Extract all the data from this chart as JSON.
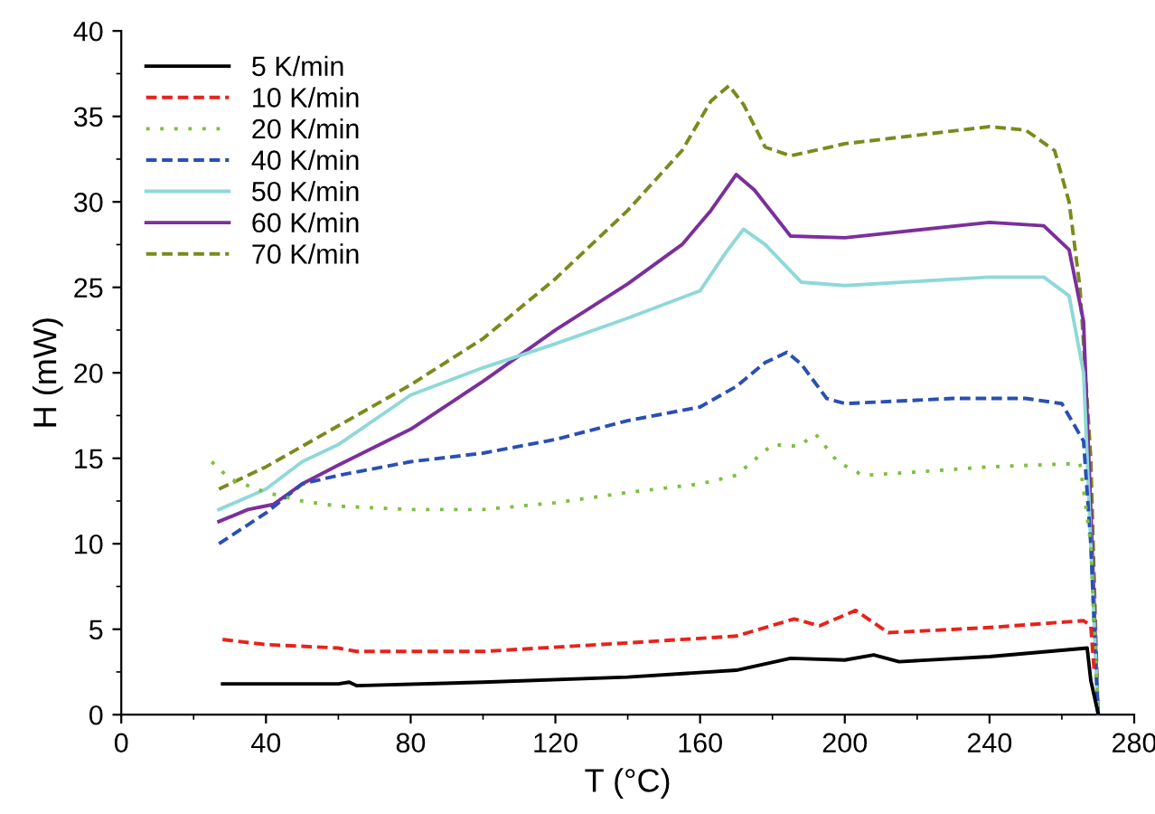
{
  "chart_data": {
    "type": "line",
    "xlabel": "T (°C)",
    "ylabel": "H (mW)",
    "xlim": [
      0,
      280
    ],
    "xticks": [
      0,
      40,
      80,
      120,
      160,
      200,
      240,
      280
    ],
    "ylim": [
      0,
      40
    ],
    "yticks": [
      0,
      5,
      10,
      15,
      20,
      25,
      30,
      35,
      40
    ],
    "grid": false,
    "legend": "top left",
    "marker": "none",
    "series": [
      {
        "name": "5 K/min",
        "color": "#000000",
        "line_style": "solid",
        "x": [
          28,
          60,
          63,
          65,
          100,
          140,
          170,
          185,
          200,
          208,
          215,
          240,
          267,
          268,
          270
        ],
        "values": [
          1.8,
          1.8,
          1.9,
          1.7,
          1.9,
          2.2,
          2.6,
          3.3,
          3.2,
          3.5,
          3.1,
          3.4,
          3.9,
          2.0,
          0.1
        ]
      },
      {
        "name": "10 K/min",
        "color": "#e8221c",
        "line_style": "dashed",
        "x": [
          28,
          40,
          60,
          65,
          100,
          140,
          170,
          186,
          193,
          203,
          212,
          240,
          266,
          268,
          269
        ],
        "values": [
          4.4,
          4.1,
          3.9,
          3.7,
          3.7,
          4.2,
          4.6,
          5.6,
          5.2,
          6.1,
          4.8,
          5.1,
          5.5,
          5.2,
          2.4
        ]
      },
      {
        "name": "20 K/min",
        "color": "#7ec03e",
        "line_style": "dotted",
        "x": [
          25,
          30,
          40,
          50,
          60,
          80,
          100,
          120,
          140,
          160,
          170,
          180,
          187,
          192,
          198,
          205,
          220,
          240,
          265,
          268,
          270
        ],
        "values": [
          14.8,
          13.8,
          13.0,
          12.5,
          12.2,
          12.0,
          12.0,
          12.4,
          13.0,
          13.5,
          14.0,
          15.8,
          15.7,
          16.4,
          14.8,
          14.0,
          14.2,
          14.5,
          14.7,
          10,
          0
        ]
      },
      {
        "name": "40 K/min",
        "color": "#2a4fb4",
        "line_style": "dashed",
        "x": [
          27,
          40,
          50,
          60,
          80,
          100,
          120,
          140,
          160,
          170,
          178,
          184,
          188,
          195,
          200,
          230,
          250,
          260,
          266,
          268,
          270
        ],
        "values": [
          10.0,
          11.8,
          13.5,
          14.0,
          14.8,
          15.3,
          16.1,
          17.2,
          18.0,
          19.2,
          20.6,
          21.2,
          20.5,
          18.5,
          18.2,
          18.5,
          18.5,
          18.2,
          16,
          10,
          0
        ]
      },
      {
        "name": "50 K/min",
        "color": "#8fd8d8",
        "line_style": "solid",
        "x": [
          27,
          40,
          50,
          60,
          80,
          100,
          120,
          140,
          160,
          167,
          172,
          178,
          188,
          200,
          240,
          255,
          262,
          266,
          268,
          270
        ],
        "values": [
          12.0,
          13.2,
          14.8,
          15.8,
          18.7,
          20.3,
          21.7,
          23.2,
          24.8,
          27,
          28.4,
          27.5,
          25.3,
          25.1,
          25.6,
          25.6,
          24.5,
          20,
          10,
          0
        ]
      },
      {
        "name": "60 K/min",
        "color": "#7b2f9c",
        "line_style": "solid",
        "x": [
          27,
          35,
          42,
          50,
          60,
          80,
          100,
          120,
          140,
          155,
          163,
          170,
          175,
          185,
          200,
          240,
          255,
          262,
          266,
          268,
          270
        ],
        "values": [
          11.3,
          12.0,
          12.3,
          13.5,
          14.6,
          16.7,
          19.5,
          22.5,
          25.2,
          27.5,
          29.5,
          31.6,
          30.7,
          28.0,
          27.9,
          28.8,
          28.6,
          27.2,
          23,
          12,
          0
        ]
      },
      {
        "name": "70 K/min",
        "color": "#7a8a1c",
        "line_style": "dashed",
        "x": [
          27,
          40,
          60,
          80,
          100,
          120,
          140,
          155,
          163,
          168,
          172,
          178,
          185,
          200,
          220,
          240,
          250,
          258,
          262,
          265,
          268,
          270
        ],
        "values": [
          13.2,
          14.5,
          16.9,
          19.3,
          22.0,
          25.5,
          29.5,
          33,
          35.9,
          36.8,
          35.7,
          33.2,
          32.7,
          33.4,
          33.9,
          34.4,
          34.2,
          33,
          30,
          25,
          15,
          0
        ]
      }
    ]
  }
}
